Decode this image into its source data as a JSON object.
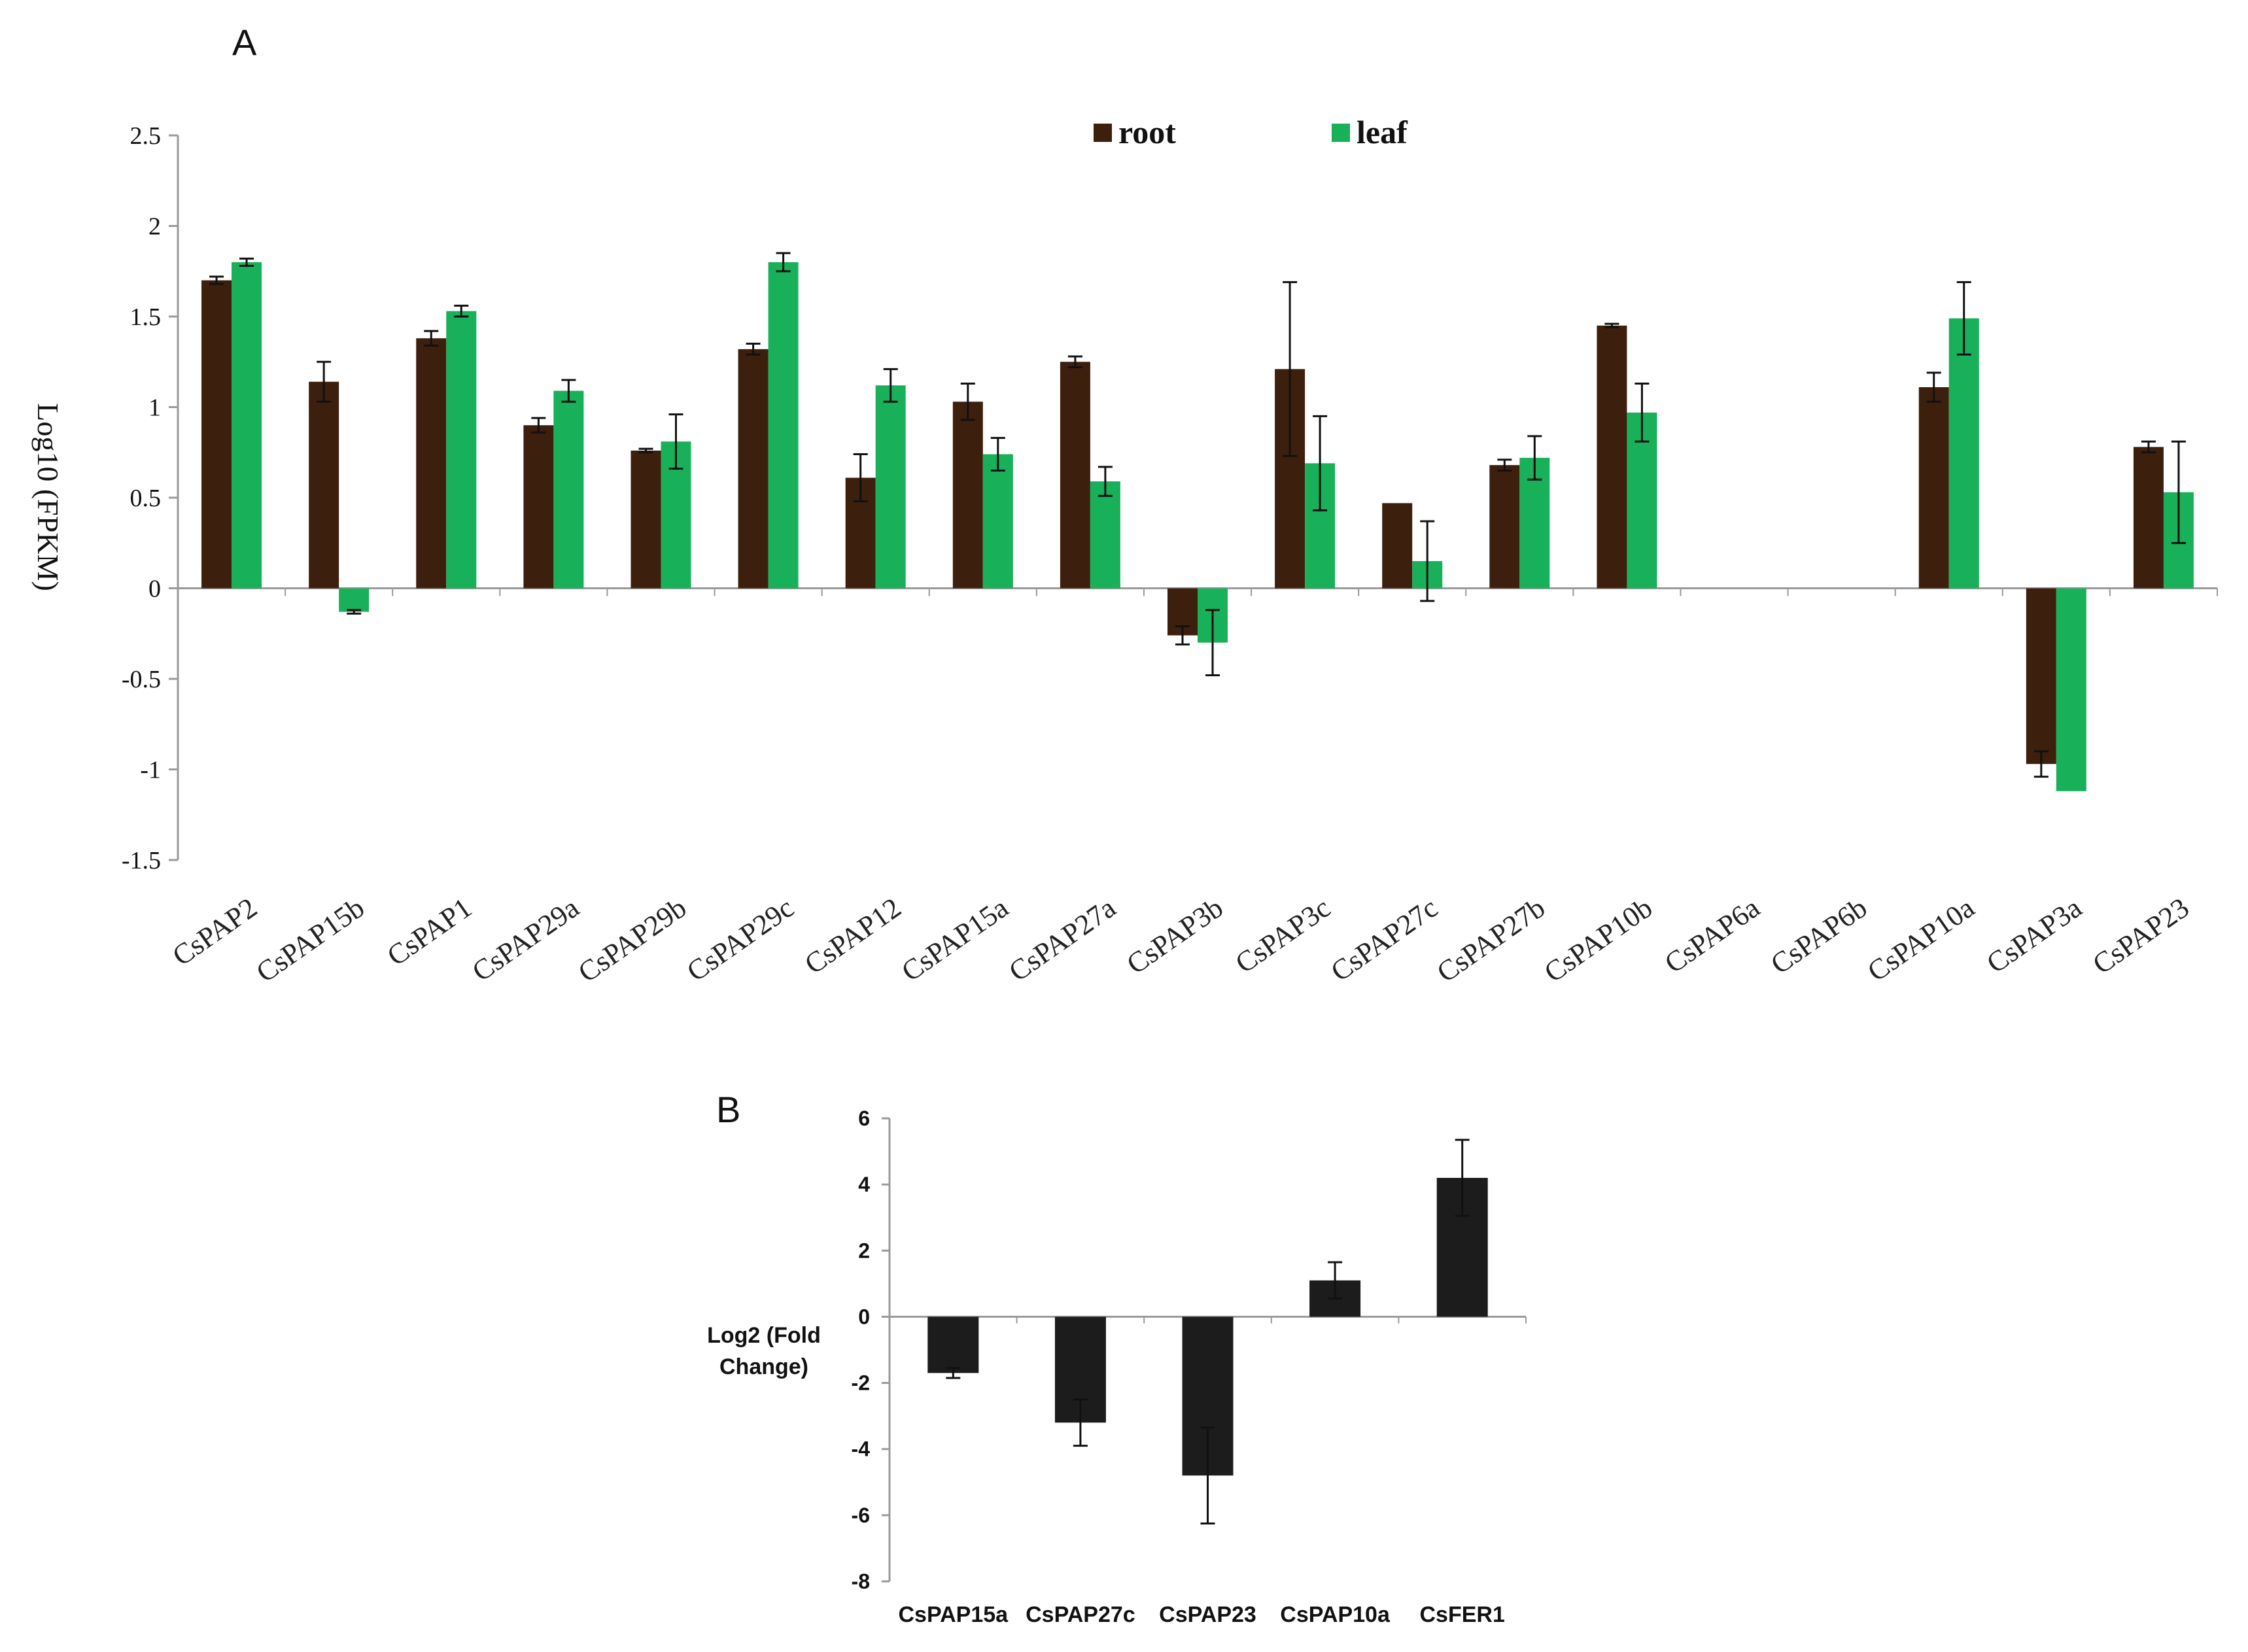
{
  "panels": {
    "a": "A",
    "b": "B"
  },
  "colors": {
    "root": "#3d1f0e",
    "leaf": "#19b05a",
    "fold": "#1c1c1c",
    "axis": "#9a9a9a"
  },
  "chart_data": [
    {
      "type": "bar",
      "panel": "A",
      "title": "",
      "xlabel": "",
      "ylabel": "Log10 (FPKM)",
      "ylim": [
        -1.5,
        2.5
      ],
      "yticks": [
        "2.5",
        "2",
        "1.5",
        "1",
        "0.5",
        "0",
        "-0.5",
        "-1",
        "-1.5"
      ],
      "grid": false,
      "legend_position": "top-center",
      "categories": [
        "CsPAP2",
        "CsPAP15b",
        "CsPAP1",
        "CsPAP29a",
        "CsPAP29b",
        "CsPAP29c",
        "CsPAP12",
        "CsPAP15a",
        "CsPAP27a",
        "CsPAP3b",
        "CsPAP3c",
        "CsPAP27c",
        "CsPAP27b",
        "CsPAP10b",
        "CsPAP6a",
        "CsPAP6b",
        "CsPAP10a",
        "CsPAP3a",
        "CsPAP23"
      ],
      "series": [
        {
          "name": "root",
          "values": [
            1.7,
            1.14,
            1.38,
            0.9,
            0.76,
            1.32,
            0.61,
            1.03,
            1.25,
            -0.26,
            1.21,
            0.47,
            0.68,
            1.45,
            0,
            0,
            1.11,
            -0.97,
            0.78
          ],
          "errors": [
            0.02,
            0.11,
            0.04,
            0.04,
            0.01,
            0.03,
            0.13,
            0.1,
            0.03,
            0.05,
            0.48,
            0,
            0.03,
            0.01,
            0,
            0,
            0.08,
            0.07,
            0.03
          ]
        },
        {
          "name": "leaf",
          "values": [
            1.8,
            -0.13,
            1.53,
            1.09,
            0.81,
            1.8,
            1.12,
            0.74,
            0.59,
            -0.3,
            0.69,
            0.15,
            0.72,
            0.97,
            0,
            0,
            1.49,
            -1.12,
            0.53
          ],
          "errors": [
            0.02,
            0.01,
            0.03,
            0.06,
            0.15,
            0.05,
            0.09,
            0.09,
            0.08,
            0.18,
            0.26,
            0.22,
            0.12,
            0.16,
            0,
            0,
            0.2,
            0,
            0.28
          ]
        }
      ]
    },
    {
      "type": "bar",
      "panel": "B",
      "title": "",
      "xlabel": "",
      "ylabel": "Log2 (Fold Change)",
      "ylabel_lines": [
        "Log2 (Fold",
        "Change)"
      ],
      "ylim": [
        -8,
        6
      ],
      "yticks": [
        "6",
        "4",
        "2",
        "0",
        "-2",
        "-4",
        "-6",
        "-8"
      ],
      "grid": false,
      "categories": [
        "CsPAP15a",
        "CsPAP27c",
        "CsPAP23",
        "CsPAP10a",
        "CsFER1"
      ],
      "series": [
        {
          "name": "Log2 (Fold Change)",
          "values": [
            -1.7,
            -3.2,
            -4.8,
            1.1,
            4.2
          ],
          "errors": [
            0.15,
            0.7,
            1.45,
            0.55,
            1.15
          ]
        }
      ]
    }
  ]
}
